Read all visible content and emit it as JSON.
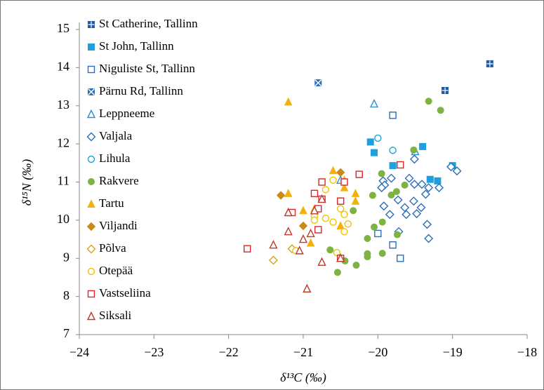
{
  "chart_data": {
    "type": "scatter",
    "x_label": "δ¹³C (‰)",
    "y_label": "δ¹⁵N (‰)",
    "xlim": [
      -24,
      -18
    ],
    "ylim": [
      7,
      15
    ],
    "xticks": [
      {
        "value": -24,
        "label": "−24"
      },
      {
        "value": -23,
        "label": "−23"
      },
      {
        "value": -22,
        "label": "−22"
      },
      {
        "value": -21,
        "label": "−21"
      },
      {
        "value": -20,
        "label": "−20"
      },
      {
        "value": -19,
        "label": "−19"
      },
      {
        "value": -18,
        "label": "−18"
      }
    ],
    "yticks": [
      7,
      8,
      9,
      10,
      11,
      12,
      13,
      14,
      15
    ],
    "grid": false,
    "legend": "top-left",
    "series": [
      {
        "name": "St Catherine, Tallinn",
        "color": "#1f5aa6",
        "marker": "square-cross",
        "x": [
          -18.5,
          -19.1
        ],
        "y": [
          14.1,
          13.4
        ]
      },
      {
        "name": "St John, Tallinn",
        "color": "#1ea0dc",
        "marker": "square",
        "x": [
          -20.1,
          -20.05,
          -19.4,
          -19.8,
          -19.3,
          -19.2,
          -19.0
        ],
        "y": [
          12.05,
          11.77,
          11.93,
          11.43,
          11.07,
          11.03,
          11.43
        ]
      },
      {
        "name": "Niguliste St, Tallinn",
        "color": "#2a6ebb",
        "marker": "square-open",
        "x": [
          -19.8,
          -20.0,
          -19.8,
          -19.7
        ],
        "y": [
          12.75,
          9.65,
          9.35,
          9.0
        ]
      },
      {
        "name": "Pärnu Rd, Tallinn",
        "color": "#2a6ebb",
        "marker": "square-x",
        "x": [
          -20.8
        ],
        "y": [
          13.6
        ]
      },
      {
        "name": "Leppneeme",
        "color": "#2e8fd0",
        "marker": "triangle-open",
        "x": [
          -20.05,
          -20.5,
          -19.5
        ],
        "y": [
          13.05,
          11.05,
          11.8
        ]
      },
      {
        "name": "Valjala",
        "color": "#2a6ebb",
        "marker": "diamond-open",
        "x": [
          -19.93,
          -19.91,
          -19.95,
          -19.82,
          -19.58,
          -19.51,
          -19.41,
          -19.36,
          -19.32,
          -19.18,
          -19.02,
          -18.94,
          -19.52,
          -19.73,
          -19.64,
          -19.84,
          -19.92,
          -19.62,
          -19.48,
          -19.42,
          -19.34,
          -19.72,
          -19.32,
          -19.51
        ],
        "y": [
          11.03,
          10.92,
          10.85,
          11.1,
          11.1,
          10.94,
          10.94,
          10.68,
          10.85,
          10.85,
          11.4,
          11.29,
          10.5,
          10.53,
          10.33,
          10.15,
          10.37,
          10.15,
          10.17,
          10.33,
          9.89,
          9.7,
          9.52,
          11.6
        ]
      },
      {
        "name": "Lihula",
        "color": "#1ea0dc",
        "marker": "circle-open",
        "x": [
          -20.0,
          -19.8
        ],
        "y": [
          12.15,
          11.83
        ]
      },
      {
        "name": "Rakvere",
        "color": "#7cb342",
        "marker": "circle",
        "x": [
          -19.32,
          -19.16,
          -19.52,
          -19.95,
          -19.75,
          -19.64,
          -20.07,
          -19.82,
          -20.33,
          -20.05,
          -19.94,
          -19.74,
          -20.14,
          -20.64,
          -20.44,
          -20.14,
          -19.94,
          -20.14,
          -20.29,
          -20.54
        ],
        "y": [
          13.12,
          12.88,
          11.84,
          11.22,
          10.75,
          10.92,
          10.65,
          10.66,
          10.25,
          9.82,
          9.95,
          9.62,
          9.52,
          9.22,
          8.93,
          9.12,
          9.13,
          9.04,
          8.82,
          8.63
        ]
      },
      {
        "name": "Tartu",
        "color": "#f2b20e",
        "marker": "triangle",
        "x": [
          -21.2,
          -21.2,
          -21.0,
          -20.85,
          -20.9,
          -20.6,
          -20.45,
          -20.45,
          -20.3,
          -20.3,
          -20.5
        ],
        "y": [
          13.1,
          10.7,
          10.25,
          10.3,
          9.4,
          11.3,
          11.05,
          10.85,
          10.7,
          10.5,
          9.85
        ]
      },
      {
        "name": "Viljandi",
        "color": "#c88a18",
        "marker": "diamond",
        "x": [
          -21.3,
          -20.5,
          -21.0
        ],
        "y": [
          10.65,
          11.25,
          9.85
        ]
      },
      {
        "name": "Põlva",
        "color": "#d4a419",
        "marker": "diamond-open",
        "x": [
          -21.4,
          -21.15
        ],
        "y": [
          8.95,
          9.25
        ]
      },
      {
        "name": "Otepää",
        "color": "#f2c200",
        "marker": "circle-open",
        "x": [
          -20.7,
          -20.6,
          -20.75,
          -20.85,
          -20.85,
          -20.7,
          -20.6,
          -20.45,
          -20.4,
          -20.45,
          -20.55,
          -20.5,
          -21.1
        ],
        "y": [
          10.8,
          11.05,
          10.55,
          10.1,
          10.0,
          10.05,
          9.95,
          10.15,
          9.9,
          9.7,
          9.15,
          10.3,
          9.2
        ]
      },
      {
        "name": "Vastseliina",
        "color": "#d9262a",
        "marker": "square-open",
        "x": [
          -21.75,
          -21.15,
          -20.8,
          -20.85,
          -20.75,
          -20.75,
          -20.8,
          -20.45,
          -20.5,
          -20.25,
          -19.7,
          -20.5
        ],
        "y": [
          9.25,
          10.2,
          9.75,
          10.7,
          11.0,
          10.55,
          10.3,
          11.0,
          10.5,
          11.2,
          11.45,
          9.0
        ]
      },
      {
        "name": "Siksali",
        "color": "#c0392b",
        "marker": "triangle-open",
        "x": [
          -21.4,
          -21.2,
          -21.2,
          -21.05,
          -21.0,
          -20.9,
          -20.85,
          -20.75,
          -20.75,
          -20.95,
          -20.5
        ],
        "y": [
          9.35,
          10.2,
          9.7,
          9.2,
          9.5,
          9.65,
          10.25,
          10.55,
          8.9,
          8.2,
          9.0
        ]
      }
    ]
  }
}
